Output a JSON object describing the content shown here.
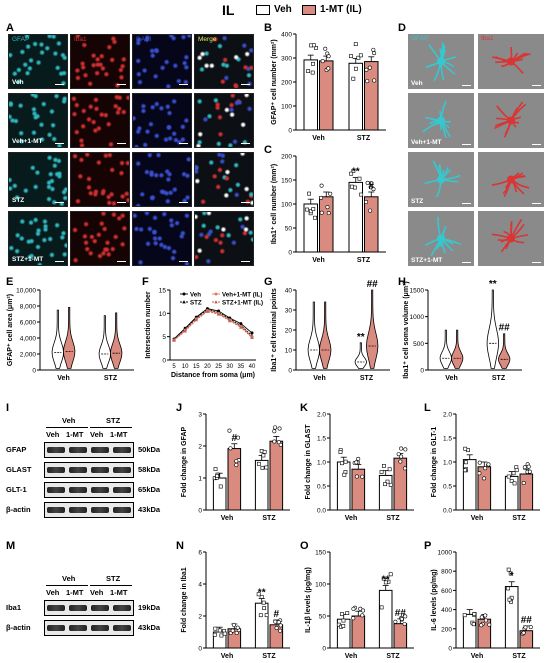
{
  "header": {
    "title": "IL",
    "legend": [
      {
        "label": "Veh",
        "color": "#ffffff"
      },
      {
        "label": "1-MT (IL)",
        "color": "#d98b7f"
      }
    ]
  },
  "panel_letters": [
    "A",
    "B",
    "C",
    "D",
    "E",
    "F",
    "G",
    "H",
    "I",
    "J",
    "K",
    "L",
    "M",
    "N",
    "O",
    "P"
  ],
  "panelA": {
    "channels": [
      "GFAP",
      "Iba1",
      "DAPI",
      "Merge"
    ],
    "rows": [
      "Veh",
      "Veh+1-MT",
      "STZ",
      "STZ+1-MT"
    ]
  },
  "panelD": {
    "channels": [
      "GFAP",
      "Iba1"
    ],
    "rows": [
      "Veh",
      "Veh+1-MT",
      "STZ",
      "STZ+1-MT"
    ]
  },
  "panelI": {
    "groups": [
      "Veh",
      "STZ"
    ],
    "lanes": [
      "Veh",
      "1-MT",
      "Veh",
      "1-MT"
    ],
    "proteins": [
      {
        "name": "GFAP",
        "kda": "50kDa"
      },
      {
        "name": "GLAST",
        "kda": "58kDa"
      },
      {
        "name": "GLT-1",
        "kda": "65kDa"
      },
      {
        "name": "β-actin",
        "kda": "43kDa"
      }
    ]
  },
  "panelM": {
    "groups": [
      "Veh",
      "STZ"
    ],
    "lanes": [
      "Veh",
      "1-MT",
      "Veh",
      "1-MT"
    ],
    "proteins": [
      {
        "name": "Iba1",
        "kda": "19kDa"
      },
      {
        "name": "β-actin",
        "kda": "43kDa"
      }
    ]
  },
  "chart_data": [
    {
      "panel": "B",
      "type": "bar",
      "categories": [
        "Veh",
        "STZ"
      ],
      "series": [
        {
          "name": "Veh",
          "values": [
            292,
            278
          ]
        },
        {
          "name": "1-MT (IL)",
          "values": [
            288,
            285
          ]
        }
      ],
      "ylabel": "GFAP⁺ cell number (mm²)",
      "ylim": [
        0,
        400
      ],
      "yticks": [
        0,
        100,
        200,
        300,
        400
      ],
      "annotations": []
    },
    {
      "panel": "C",
      "type": "bar",
      "categories": [
        "Veh",
        "STZ"
      ],
      "series": [
        {
          "name": "Veh",
          "values": [
            100,
            145
          ]
        },
        {
          "name": "1-MT (IL)",
          "values": [
            115,
            115
          ]
        }
      ],
      "ylabel": "Iba1⁺ cell number (mm²)",
      "ylim": [
        0,
        200
      ],
      "yticks": [
        0,
        50,
        100,
        150,
        200
      ],
      "annotations": [
        {
          "category": "STZ",
          "series": 0,
          "text": "**"
        },
        {
          "category": "STZ",
          "series": 1,
          "text": "#"
        }
      ]
    },
    {
      "panel": "E",
      "type": "violin",
      "categories": [
        "Veh",
        "STZ"
      ],
      "series": [
        {
          "name": "Veh",
          "values": [
            2200,
            2000
          ]
        },
        {
          "name": "1-MT (IL)",
          "values": [
            2300,
            2100
          ]
        }
      ],
      "ylabel": "GFAP⁺ cell area (μm²)",
      "ylim": [
        0,
        10000
      ],
      "yticks": [
        0,
        2000,
        4000,
        6000,
        8000,
        10000
      ],
      "yticklabels": [
        "0",
        "2,000",
        "4,000",
        "6,000",
        "8,000",
        "10,000"
      ],
      "annotations": []
    },
    {
      "panel": "F",
      "type": "line",
      "x": [
        5,
        10,
        15,
        20,
        25,
        30,
        35,
        40
      ],
      "series": [
        {
          "name": "Veh",
          "values": [
            4.5,
            6.8,
            9.2,
            11.0,
            10.5,
            9.0,
            7.8,
            5.8
          ]
        },
        {
          "name": "STZ",
          "values": [
            4.4,
            6.6,
            9.0,
            10.8,
            10.2,
            8.8,
            7.4,
            5.2
          ]
        },
        {
          "name": "Veh+1-MT (IL)",
          "values": [
            4.3,
            6.4,
            8.8,
            10.6,
            10.0,
            8.6,
            7.2,
            5.0
          ]
        },
        {
          "name": "STZ+1-MT (IL)",
          "values": [
            4.2,
            6.2,
            8.6,
            10.4,
            9.8,
            8.4,
            7.0,
            4.8
          ]
        }
      ],
      "xlabel": "Distance from soma (μm)",
      "ylabel": "Intersection number",
      "ylim": [
        0,
        15
      ],
      "yticks": [
        0,
        5,
        10,
        15
      ]
    },
    {
      "panel": "G",
      "type": "violin",
      "categories": [
        "Veh",
        "STZ"
      ],
      "series": [
        {
          "name": "Veh",
          "values": [
            10,
            4
          ]
        },
        {
          "name": "1-MT (IL)",
          "values": [
            10,
            12
          ]
        }
      ],
      "ylabel": "Iba1⁺ cell terminal points",
      "ylim": [
        0,
        40
      ],
      "yticks": [
        0,
        10,
        20,
        30,
        40
      ],
      "annotations": [
        {
          "category": "STZ",
          "series": 0,
          "text": "**"
        },
        {
          "category": "STZ",
          "series": 1,
          "text": "##"
        }
      ]
    },
    {
      "panel": "H",
      "type": "violin",
      "categories": [
        "Veh",
        "STZ"
      ],
      "series": [
        {
          "name": "Veh",
          "values": [
            220,
            500
          ]
        },
        {
          "name": "1-MT (IL)",
          "values": [
            220,
            200
          ]
        }
      ],
      "ylabel": "Iba1⁺ cell soma volume (μm³)",
      "ylim": [
        0,
        1500
      ],
      "yticks": [
        0,
        500,
        1000,
        1500
      ],
      "annotations": [
        {
          "category": "STZ",
          "series": 0,
          "text": "**"
        },
        {
          "category": "STZ",
          "series": 1,
          "text": "##"
        }
      ]
    },
    {
      "panel": "J",
      "type": "bar",
      "categories": [
        "Veh",
        "STZ"
      ],
      "series": [
        {
          "name": "Veh",
          "values": [
            1.0,
            1.55
          ]
        },
        {
          "name": "1-MT (IL)",
          "values": [
            1.92,
            2.15
          ]
        }
      ],
      "ylabel": "Fold change in GFAP",
      "ylim": [
        0,
        3
      ],
      "yticks": [
        0,
        1,
        2,
        3
      ],
      "annotations": [
        {
          "category": "Veh",
          "series": 1,
          "text": "#"
        }
      ]
    },
    {
      "panel": "K",
      "type": "bar",
      "categories": [
        "Veh",
        "STZ"
      ],
      "series": [
        {
          "name": "Veh",
          "values": [
            1.0,
            0.72
          ]
        },
        {
          "name": "1-MT (IL)",
          "values": [
            0.85,
            1.08
          ]
        }
      ],
      "ylabel": "Fold change in GLAST",
      "ylim": [
        0,
        2
      ],
      "yticks": [
        0.0,
        0.5,
        1.0,
        1.5,
        2.0
      ],
      "yticklabels": [
        "0.0",
        "0.5",
        "1.0",
        "1.5",
        "2.0"
      ],
      "annotations": []
    },
    {
      "panel": "L",
      "type": "bar",
      "categories": [
        "Veh",
        "STZ"
      ],
      "series": [
        {
          "name": "Veh",
          "values": [
            1.05,
            0.7
          ]
        },
        {
          "name": "1-MT (IL)",
          "values": [
            0.9,
            0.75
          ]
        }
      ],
      "ylabel": "Fold change in GLT-1",
      "ylim": [
        0,
        2
      ],
      "yticks": [
        0.0,
        0.5,
        1.0,
        1.5,
        2.0
      ],
      "yticklabels": [
        "0.0",
        "0.5",
        "1.0",
        "1.5",
        "2.0"
      ],
      "annotations": []
    },
    {
      "panel": "N",
      "type": "bar",
      "categories": [
        "Veh",
        "STZ"
      ],
      "series": [
        {
          "name": "Veh",
          "values": [
            1.0,
            2.8
          ]
        },
        {
          "name": "1-MT (IL)",
          "values": [
            1.2,
            1.45
          ]
        }
      ],
      "ylabel": "Fold change in Iba1",
      "ylim": [
        0,
        6
      ],
      "yticks": [
        0,
        2,
        4,
        6
      ],
      "annotations": [
        {
          "category": "STZ",
          "series": 0,
          "text": "**"
        },
        {
          "category": "STZ",
          "series": 1,
          "text": "#"
        }
      ]
    },
    {
      "panel": "O",
      "type": "bar",
      "categories": [
        "Veh",
        "STZ"
      ],
      "series": [
        {
          "name": "Veh",
          "values": [
            45,
            90
          ]
        },
        {
          "name": "1-MT (IL)",
          "values": [
            50,
            38
          ]
        }
      ],
      "ylabel": "IL-1β levels (pg/mg)",
      "ylim": [
        0,
        150
      ],
      "yticks": [
        0,
        50,
        100,
        150
      ],
      "annotations": [
        {
          "category": "STZ",
          "series": 0,
          "text": "**"
        },
        {
          "category": "STZ",
          "series": 1,
          "text": "##"
        }
      ]
    },
    {
      "panel": "P",
      "type": "bar",
      "categories": [
        "Veh",
        "STZ"
      ],
      "series": [
        {
          "name": "Veh",
          "values": [
            350,
            640
          ]
        },
        {
          "name": "1-MT (IL)",
          "values": [
            300,
            180
          ]
        }
      ],
      "ylabel": "IL-6 levels (pg/mg)",
      "ylim": [
        0,
        1000
      ],
      "yticks": [
        0,
        200,
        400,
        600,
        800,
        1000
      ],
      "annotations": [
        {
          "category": "STZ",
          "series": 0,
          "text": "*"
        },
        {
          "category": "STZ",
          "series": 1,
          "text": "##"
        }
      ]
    }
  ]
}
